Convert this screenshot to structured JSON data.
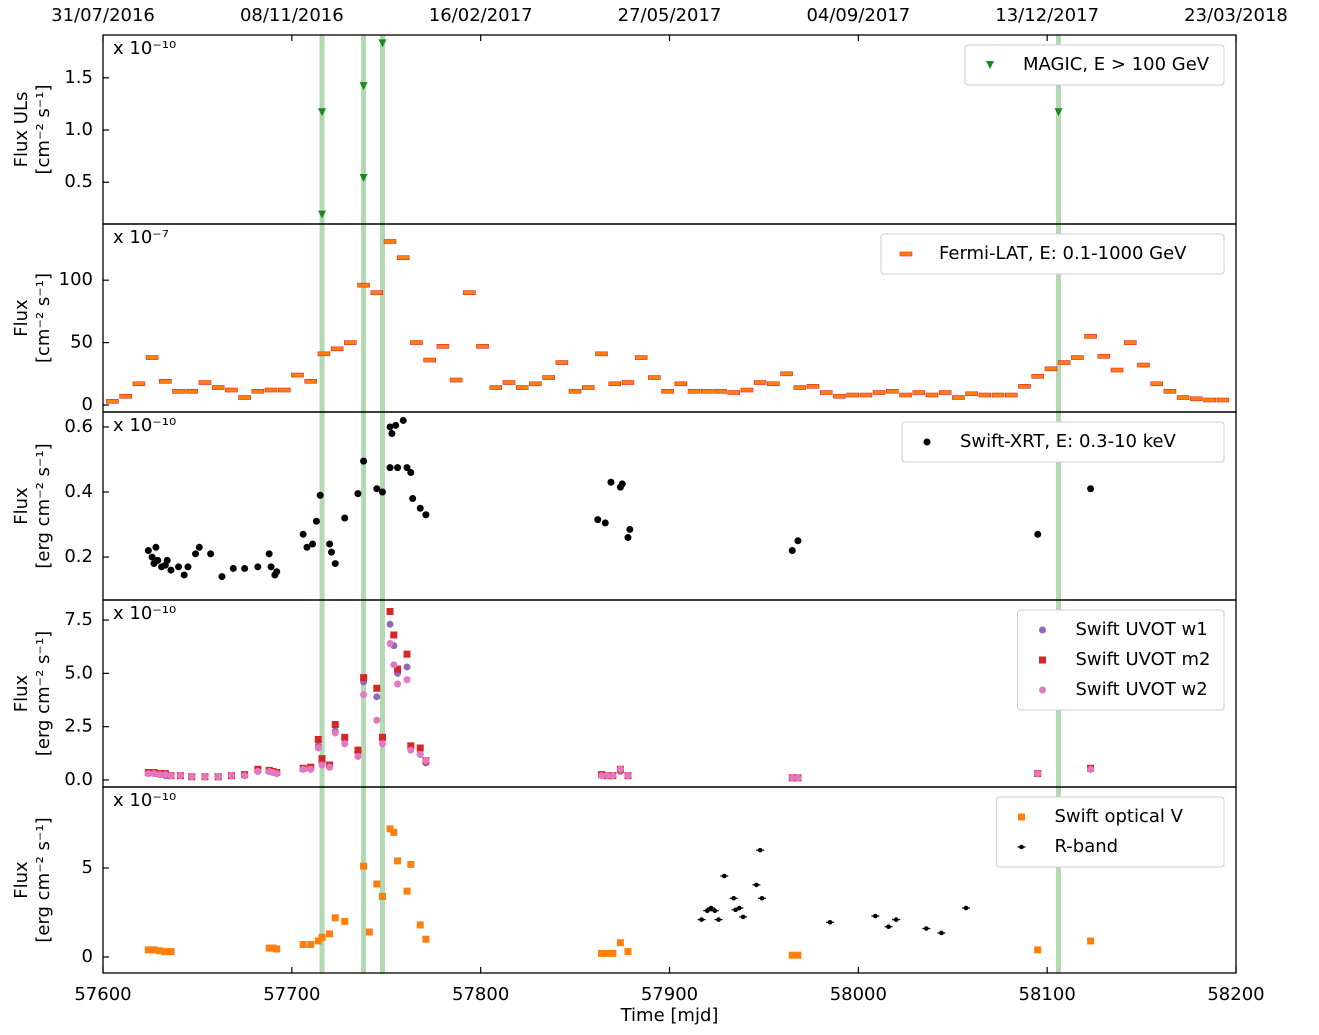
{
  "chart_data": [
    {
      "type": "scatter",
      "ylabel": [
        "Flux ULs",
        "[cm⁻² s⁻¹]"
      ],
      "scale_label": "x 10⁻¹⁰",
      "xlim": [
        57600,
        58200
      ],
      "ylim": [
        0.1,
        1.91
      ],
      "yticks": [
        0.5,
        {
          "value": 1,
          "label": "1.0"
        },
        1.5
      ],
      "top_xticks": [
        {
          "value": 57600,
          "label": "31/07/2016"
        },
        {
          "value": 57700,
          "label": "08/11/2016"
        },
        {
          "value": 57800,
          "label": "16/02/2017"
        },
        {
          "value": 57900,
          "label": "27/05/2017"
        },
        {
          "value": 58000,
          "label": "04/09/2017"
        },
        {
          "value": 58100,
          "label": "13/12/2017"
        },
        {
          "value": 58200,
          "label": "23/03/2018"
        }
      ],
      "vlines": [
        57716,
        57738,
        57748,
        58106
      ],
      "vline_color": "#9fd09f",
      "legend": "upper right",
      "series": [
        {
          "name": "MAGIC, E > 100 GeV",
          "color": "#1a8a1a",
          "marker": "triangle_down",
          "x": [
            57716,
            57716,
            57738,
            57738,
            57748,
            58106
          ],
          "values": [
            1.17,
            0.19,
            1.42,
            0.54,
            1.83,
            1.17
          ]
        }
      ]
    },
    {
      "type": "scatter",
      "ylabel": [
        "Flux",
        "[cm⁻² s⁻¹]"
      ],
      "scale_label": "x 10⁻⁷",
      "xlim": [
        57600,
        58200
      ],
      "ylim": [
        -5.6,
        145
      ],
      "yticks": [
        0,
        50,
        100
      ],
      "legend": "upper right",
      "series": [
        {
          "name": "Fermi-LAT, E: 0.1-1000 GeV",
          "color": "#ff7f0e",
          "marker": "hbar",
          "x": [
            57605,
            57612,
            57619,
            57626,
            57633,
            57640,
            57647,
            57654,
            57661,
            57668,
            57675,
            57682,
            57689,
            57696,
            57703,
            57710,
            57717,
            57724,
            57731,
            57738,
            57745,
            57752,
            57759,
            57766,
            57773,
            57780,
            57787,
            57794,
            57801,
            57808,
            57815,
            57822,
            57829,
            57836,
            57843,
            57850,
            57857,
            57864,
            57871,
            57878,
            57885,
            57892,
            57899,
            57906,
            57913,
            57920,
            57927,
            57934,
            57941,
            57948,
            57955,
            57962,
            57969,
            57976,
            57983,
            57990,
            57997,
            58004,
            58011,
            58018,
            58025,
            58032,
            58039,
            58046,
            58053,
            58060,
            58067,
            58074,
            58081,
            58088,
            58095,
            58102,
            58109,
            58116,
            58123,
            58130,
            58137,
            58144,
            58151,
            58158,
            58165,
            58172,
            58179,
            58186,
            58193
          ],
          "values": [
            3,
            7,
            17,
            38,
            19,
            11,
            11,
            18,
            14,
            12,
            6,
            11,
            12,
            12,
            24,
            19,
            41,
            45,
            50,
            96,
            90,
            131,
            118,
            50,
            36,
            47,
            20,
            90,
            47,
            14,
            18,
            14,
            17,
            22,
            34,
            11,
            14,
            41,
            17,
            18,
            38,
            22,
            11,
            17,
            11,
            11,
            11,
            10,
            12,
            18,
            17,
            25,
            14,
            15,
            10,
            7,
            8,
            8,
            10,
            11,
            8,
            10,
            8,
            10,
            6,
            9,
            8,
            8,
            8,
            15,
            23,
            29,
            34,
            38,
            55,
            39,
            28,
            50,
            32,
            17,
            11,
            6,
            5,
            4,
            4
          ]
        }
      ]
    },
    {
      "type": "scatter",
      "ylabel": [
        "Flux",
        "[erg cm⁻² s⁻¹]"
      ],
      "scale_label": "x 10⁻¹⁰",
      "xlim": [
        57600,
        58200
      ],
      "ylim": [
        0.068,
        0.646
      ],
      "yticks": [
        0.2,
        0.4,
        0.6
      ],
      "legend": "upper right",
      "series": [
        {
          "name": "Swift-XRT, E: 0.3-10 keV",
          "color": "#000000",
          "marker": "circle",
          "x": [
            57624,
            57626,
            57628,
            57627,
            57629,
            57631,
            57633,
            57634,
            57636,
            57640,
            57643,
            57645,
            57649,
            57651,
            57657,
            57663,
            57669,
            57675,
            57682,
            57688,
            57689,
            57691,
            57692,
            57706,
            57708,
            57711,
            57713,
            57715,
            57720,
            57721,
            57723,
            57728,
            57735,
            57738,
            57745,
            57748,
            57752,
            57753,
            57755,
            57759,
            57752,
            57756,
            57761,
            57763,
            57764,
            57768,
            57771,
            57862,
            57866,
            57869,
            57874,
            57875,
            57878,
            57879,
            57965,
            57968,
            58095,
            58123
          ],
          "values": [
            0.22,
            0.2,
            0.23,
            0.18,
            0.19,
            0.17,
            0.175,
            0.19,
            0.16,
            0.17,
            0.145,
            0.17,
            0.21,
            0.23,
            0.21,
            0.14,
            0.165,
            0.165,
            0.17,
            0.21,
            0.17,
            0.145,
            0.155,
            0.27,
            0.23,
            0.24,
            0.31,
            0.39,
            0.24,
            0.215,
            0.18,
            0.32,
            0.395,
            0.495,
            0.41,
            0.4,
            0.6,
            0.58,
            0.605,
            0.62,
            0.475,
            0.475,
            0.475,
            0.46,
            0.38,
            0.35,
            0.33,
            0.315,
            0.305,
            0.43,
            0.415,
            0.425,
            0.26,
            0.285,
            0.22,
            0.25,
            0.27,
            0.41
          ]
        }
      ]
    },
    {
      "type": "scatter",
      "ylabel": [
        "Flux",
        "[erg cm⁻² s⁻¹]"
      ],
      "scale_label": "x 10⁻¹⁰",
      "xlim": [
        57600,
        58200
      ],
      "ylim": [
        -0.33,
        8.44
      ],
      "yticks": [
        {
          "value": 0,
          "label": "0.0"
        },
        2.5,
        {
          "value": 5,
          "label": "5.0"
        },
        7.5
      ],
      "legend": "upper right",
      "series": [
        {
          "name": "Swift UVOT w1",
          "color": "#9467bd",
          "marker": "circle",
          "x": [
            57624,
            57627,
            57630,
            57633,
            57636,
            57641,
            57647,
            57654,
            57661,
            57668,
            57675,
            57682,
            57688,
            57690,
            57692,
            57706,
            57710,
            57714,
            57716,
            57720,
            57723,
            57728,
            57735,
            57738,
            57745,
            57748,
            57752,
            57754,
            57756,
            57761,
            57763,
            57768,
            57771,
            57864,
            57867,
            57870,
            57874,
            57878,
            57965,
            57968,
            58095,
            58123
          ],
          "values": [
            0.3,
            0.3,
            0.25,
            0.2,
            0.2,
            0.2,
            0.15,
            0.15,
            0.15,
            0.2,
            0.2,
            0.4,
            0.4,
            0.35,
            0.3,
            0.5,
            0.5,
            1.6,
            0.8,
            0.6,
            2.3,
            1.9,
            1.3,
            4.6,
            3.9,
            1.9,
            7.3,
            6.3,
            5.0,
            5.3,
            1.5,
            1.2,
            0.8,
            0.2,
            0.2,
            0.2,
            0.4,
            0.2,
            0.1,
            0.1,
            0.3,
            0.5
          ]
        },
        {
          "name": "Swift UVOT m2",
          "color": "#d62728",
          "marker": "square",
          "x": [
            57624,
            57627,
            57630,
            57633,
            57636,
            57641,
            57647,
            57654,
            57661,
            57668,
            57675,
            57682,
            57688,
            57690,
            57692,
            57706,
            57710,
            57714,
            57716,
            57720,
            57723,
            57728,
            57735,
            57738,
            57745,
            57748,
            57752,
            57754,
            57756,
            57761,
            57763,
            57768,
            57771,
            57864,
            57867,
            57870,
            57874,
            57878,
            57965,
            57968,
            58095,
            58123
          ],
          "values": [
            0.35,
            0.35,
            0.3,
            0.3,
            0.2,
            0.2,
            0.15,
            0.15,
            0.15,
            0.2,
            0.25,
            0.5,
            0.45,
            0.4,
            0.35,
            0.55,
            0.6,
            1.9,
            1.0,
            0.7,
            2.6,
            2.0,
            1.4,
            4.8,
            4.3,
            2.0,
            7.9,
            6.8,
            5.2,
            5.9,
            1.6,
            1.5,
            0.9,
            0.25,
            0.2,
            0.2,
            0.5,
            0.2,
            0.1,
            0.1,
            0.3,
            0.55
          ]
        },
        {
          "name": "Swift UVOT w2",
          "color": "#e377c2",
          "marker": "circle",
          "x": [
            57624,
            57627,
            57630,
            57633,
            57636,
            57641,
            57647,
            57654,
            57661,
            57668,
            57675,
            57682,
            57688,
            57690,
            57692,
            57706,
            57710,
            57714,
            57716,
            57720,
            57723,
            57728,
            57735,
            57738,
            57745,
            57748,
            57752,
            57754,
            57756,
            57761,
            57763,
            57768,
            57771,
            57864,
            57867,
            57870,
            57874,
            57878,
            57965,
            57968,
            58095,
            58123
          ],
          "values": [
            0.3,
            0.3,
            0.25,
            0.25,
            0.2,
            0.2,
            0.15,
            0.15,
            0.15,
            0.2,
            0.2,
            0.4,
            0.4,
            0.35,
            0.3,
            0.5,
            0.5,
            1.5,
            0.7,
            0.6,
            2.2,
            1.7,
            1.1,
            4.0,
            2.8,
            1.7,
            6.4,
            5.4,
            4.5,
            4.7,
            1.4,
            1.2,
            0.9,
            0.2,
            0.2,
            0.2,
            0.5,
            0.2,
            0.1,
            0.1,
            0.3,
            0.5
          ]
        }
      ]
    },
    {
      "type": "scatter",
      "ylabel": [
        "Flux",
        "[erg cm⁻² s⁻¹]"
      ],
      "scale_label": "x 10⁻¹⁰",
      "xlim": [
        57600,
        58200
      ],
      "ylim": [
        -0.9,
        9.55
      ],
      "yticks": [
        0,
        5
      ],
      "legend": "upper right",
      "xticks": [
        57600,
        57700,
        57800,
        57900,
        58000,
        58100,
        58200
      ],
      "xlabel": "Time [mjd]",
      "series": [
        {
          "name": "Swift optical V",
          "color": "#ff7f0e",
          "marker": "square",
          "x": [
            57624,
            57627,
            57630,
            57633,
            57636,
            57688,
            57690,
            57692,
            57706,
            57710,
            57714,
            57716,
            57720,
            57723,
            57728,
            57738,
            57741,
            57745,
            57748,
            57752,
            57754,
            57756,
            57761,
            57763,
            57768,
            57771,
            57864,
            57867,
            57870,
            57874,
            57878,
            57965,
            57968,
            58095,
            58123
          ],
          "values": [
            0.4,
            0.4,
            0.35,
            0.3,
            0.3,
            0.5,
            0.5,
            0.45,
            0.7,
            0.7,
            0.9,
            1.1,
            1.3,
            2.2,
            2.0,
            5.1,
            1.4,
            4.1,
            3.4,
            7.2,
            7.0,
            5.4,
            3.7,
            5.2,
            1.8,
            1.0,
            0.2,
            0.2,
            0.2,
            0.8,
            0.3,
            0.1,
            0.1,
            0.4,
            0.9
          ]
        },
        {
          "name": "R-band",
          "color": "#000000",
          "marker": "small",
          "x": [
            57917,
            57920,
            57922,
            57924,
            57926,
            57929,
            57934,
            57935,
            57937,
            57939,
            57946,
            57948,
            57949,
            57985,
            58009,
            58016,
            58020,
            58036,
            58044,
            58057
          ],
          "values": [
            2.1,
            2.6,
            2.75,
            2.6,
            2.1,
            4.55,
            3.3,
            2.65,
            2.75,
            2.25,
            4.05,
            6.0,
            3.3,
            1.95,
            2.3,
            1.7,
            2.1,
            1.6,
            1.35,
            2.75
          ]
        }
      ]
    }
  ]
}
